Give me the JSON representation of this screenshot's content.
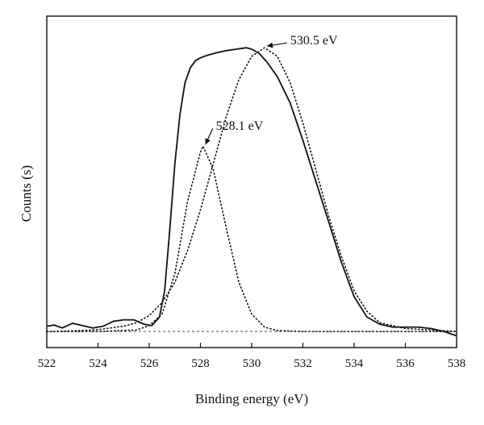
{
  "chart_data": {
    "type": "line",
    "title": "",
    "xlabel": "Binding energy (eV)",
    "ylabel": "Counts (s)",
    "xlim": [
      522,
      538
    ],
    "ylim": [
      0,
      1
    ],
    "x_ticks": [
      522,
      524,
      526,
      528,
      530,
      532,
      534,
      536,
      538
    ],
    "grid": false,
    "legend": "none",
    "series": [
      {
        "style": "solid",
        "x": [
          522,
          522.3,
          522.6,
          523,
          523.4,
          523.8,
          524.2,
          524.6,
          525,
          525.4,
          525.8,
          526.1,
          526.4,
          526.6,
          526.8,
          527,
          527.2,
          527.4,
          527.6,
          527.8,
          528,
          528.3,
          528.6,
          529,
          529.4,
          529.8,
          530,
          530.3,
          530.6,
          531,
          531.5,
          532,
          532.5,
          533,
          533.5,
          534,
          534.5,
          535,
          535.5,
          536,
          536.5,
          537,
          537.5,
          538
        ],
        "y": [
          0.018,
          0.022,
          0.012,
          0.028,
          0.02,
          0.012,
          0.018,
          0.035,
          0.04,
          0.04,
          0.025,
          0.02,
          0.05,
          0.14,
          0.35,
          0.58,
          0.75,
          0.86,
          0.91,
          0.935,
          0.945,
          0.955,
          0.962,
          0.97,
          0.975,
          0.98,
          0.975,
          0.96,
          0.93,
          0.88,
          0.79,
          0.66,
          0.52,
          0.38,
          0.24,
          0.12,
          0.05,
          0.025,
          0.015,
          0.015,
          0.015,
          0.01,
          0.0,
          -0.015
        ]
      },
      {
        "style": "dotted",
        "peak_center": 530.5,
        "x": [
          522,
          523,
          524,
          525,
          525.5,
          526,
          526.5,
          527,
          527.5,
          528,
          528.5,
          529,
          529.5,
          530,
          530.5,
          531,
          531.5,
          532,
          532.5,
          533,
          533.5,
          534,
          534.5,
          535,
          536,
          537,
          538
        ],
        "y": [
          0.0,
          0.002,
          0.006,
          0.018,
          0.03,
          0.055,
          0.1,
          0.17,
          0.28,
          0.42,
          0.58,
          0.74,
          0.87,
          0.95,
          0.98,
          0.95,
          0.86,
          0.72,
          0.56,
          0.4,
          0.26,
          0.14,
          0.07,
          0.03,
          0.01,
          0.005,
          0.0
        ]
      },
      {
        "style": "dotted",
        "peak_center": 528.1,
        "x": [
          522,
          524,
          525.5,
          526,
          526.5,
          527,
          527.5,
          528,
          528.1,
          528.5,
          529,
          529.5,
          530,
          530.5,
          531,
          532,
          534,
          536,
          538
        ],
        "y": [
          0.0,
          0.0,
          0.005,
          0.02,
          0.06,
          0.2,
          0.45,
          0.62,
          0.64,
          0.56,
          0.36,
          0.17,
          0.06,
          0.015,
          0.003,
          0.0,
          0.0,
          0.0,
          0.0
        ]
      }
    ],
    "annotations": [
      {
        "text": "530.5 eV",
        "x": 530.5,
        "y": 0.98
      },
      {
        "text": "528.1 eV",
        "x": 528.1,
        "y": 0.64
      }
    ]
  }
}
